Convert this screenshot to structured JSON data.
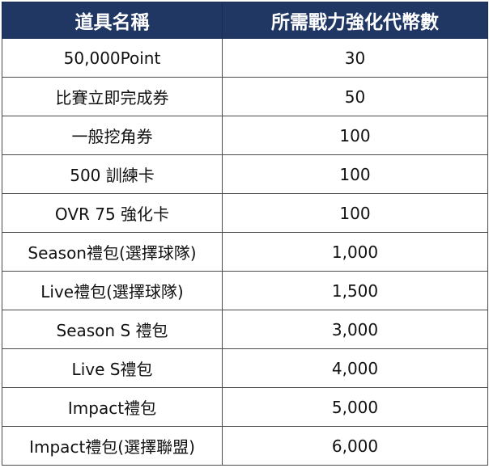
{
  "header": {
    "item_name": "道具名稱",
    "required_tokens": "所需戰力強化代幣數"
  },
  "rows": [
    {
      "item": "50,000Point",
      "cost": "30"
    },
    {
      "item": "比賽立即完成券",
      "cost": "50"
    },
    {
      "item": "一般挖角券",
      "cost": "100"
    },
    {
      "item": "500 訓練卡",
      "cost": "100"
    },
    {
      "item": "OVR 75 強化卡",
      "cost": "100"
    },
    {
      "item": "Season禮包(選擇球隊)",
      "cost": "1,000"
    },
    {
      "item": "Live禮包(選擇球隊)",
      "cost": "1,500"
    },
    {
      "item": "Season S 禮包",
      "cost": "3,000"
    },
    {
      "item": "Live S禮包",
      "cost": "4,000"
    },
    {
      "item": "Impact禮包",
      "cost": "5,000"
    },
    {
      "item": "Impact禮包(選擇聯盟)",
      "cost": "6,000"
    }
  ],
  "colors": {
    "header_bg": "#203764",
    "header_text": "#ffffff",
    "border": "#4a4a4a"
  }
}
